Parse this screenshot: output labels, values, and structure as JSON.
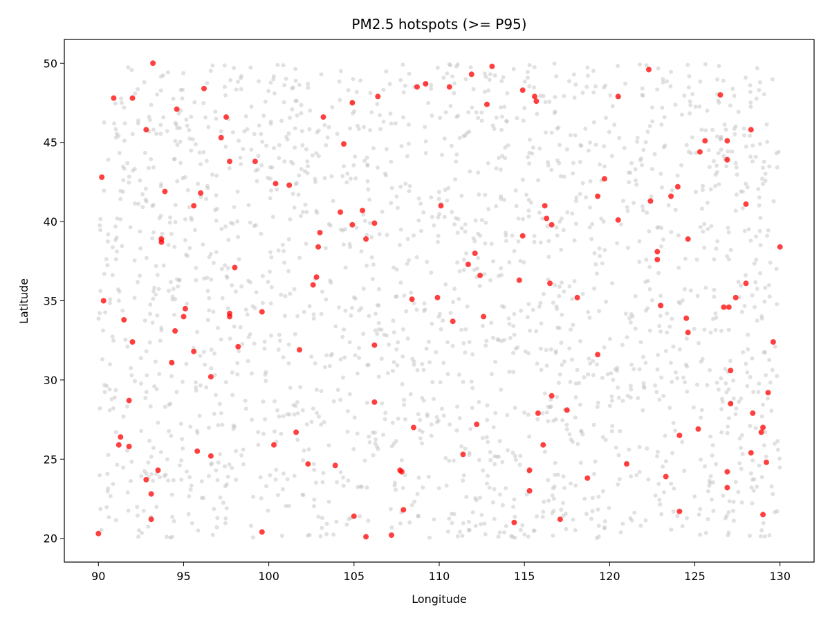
{
  "chart_data": {
    "type": "scatter",
    "title": "PM2.5 hotspots (>= P95)",
    "xlabel": "Longitude",
    "ylabel": "Latitude",
    "xlim": [
      88.0,
      132.0
    ],
    "ylim": [
      18.5,
      51.5
    ],
    "x_ticks": [
      90,
      95,
      100,
      105,
      110,
      115,
      120,
      125,
      130
    ],
    "y_ticks": [
      20,
      25,
      30,
      35,
      40,
      45,
      50
    ],
    "grid": false,
    "colors": {
      "background": "#bdbdbd",
      "hotspot": "#ff0000"
    },
    "background_points": {
      "name": "",
      "note_count_approx": 2000,
      "extent": {
        "x": [
          90.0,
          130.0
        ],
        "y": [
          20.0,
          50.0
        ]
      }
    },
    "hotspots": [
      [
        90.0,
        20.3
      ],
      [
        90.2,
        42.8
      ],
      [
        90.3,
        35.0
      ],
      [
        90.9,
        47.8
      ],
      [
        91.2,
        25.9
      ],
      [
        91.3,
        26.4
      ],
      [
        91.5,
        33.8
      ],
      [
        91.8,
        25.8
      ],
      [
        91.8,
        28.7
      ],
      [
        92.0,
        32.4
      ],
      [
        92.0,
        47.8
      ],
      [
        92.8,
        23.7
      ],
      [
        92.8,
        45.8
      ],
      [
        93.1,
        22.8
      ],
      [
        93.1,
        21.2
      ],
      [
        93.2,
        50.0
      ],
      [
        93.5,
        24.3
      ],
      [
        93.7,
        38.9
      ],
      [
        93.7,
        38.7
      ],
      [
        93.9,
        41.9
      ],
      [
        94.3,
        31.1
      ],
      [
        94.5,
        33.1
      ],
      [
        94.6,
        47.1
      ],
      [
        95.0,
        34.0
      ],
      [
        95.1,
        34.5
      ],
      [
        95.6,
        41.0
      ],
      [
        95.6,
        31.8
      ],
      [
        95.8,
        25.5
      ],
      [
        96.0,
        41.8
      ],
      [
        96.2,
        48.4
      ],
      [
        96.6,
        30.2
      ],
      [
        96.6,
        25.2
      ],
      [
        97.2,
        45.3
      ],
      [
        97.5,
        46.6
      ],
      [
        97.7,
        43.8
      ],
      [
        97.7,
        34.2
      ],
      [
        97.7,
        34.0
      ],
      [
        98.0,
        37.1
      ],
      [
        98.2,
        32.1
      ],
      [
        99.2,
        43.8
      ],
      [
        99.6,
        34.3
      ],
      [
        99.6,
        20.4
      ],
      [
        100.3,
        25.9
      ],
      [
        100.4,
        42.4
      ],
      [
        101.2,
        42.3
      ],
      [
        101.6,
        26.7
      ],
      [
        101.8,
        31.9
      ],
      [
        102.3,
        24.7
      ],
      [
        102.6,
        36.0
      ],
      [
        102.8,
        36.5
      ],
      [
        102.9,
        38.4
      ],
      [
        103.0,
        39.3
      ],
      [
        103.2,
        46.6
      ],
      [
        103.9,
        24.6
      ],
      [
        104.2,
        40.6
      ],
      [
        104.4,
        44.9
      ],
      [
        104.9,
        47.5
      ],
      [
        104.9,
        39.8
      ],
      [
        105.0,
        21.4
      ],
      [
        105.5,
        40.7
      ],
      [
        105.7,
        38.9
      ],
      [
        105.7,
        20.1
      ],
      [
        106.2,
        39.9
      ],
      [
        106.2,
        32.2
      ],
      [
        106.2,
        28.6
      ],
      [
        106.4,
        47.9
      ],
      [
        107.2,
        20.2
      ],
      [
        107.7,
        24.3
      ],
      [
        107.8,
        24.2
      ],
      [
        107.9,
        21.8
      ],
      [
        108.4,
        35.1
      ],
      [
        108.5,
        27.0
      ],
      [
        108.7,
        48.5
      ],
      [
        109.2,
        48.7
      ],
      [
        109.9,
        35.2
      ],
      [
        110.1,
        41.0
      ],
      [
        110.6,
        48.5
      ],
      [
        110.8,
        33.7
      ],
      [
        111.4,
        25.3
      ],
      [
        111.7,
        37.3
      ],
      [
        111.9,
        49.3
      ],
      [
        112.1,
        38.0
      ],
      [
        112.2,
        27.2
      ],
      [
        112.4,
        36.6
      ],
      [
        112.6,
        34.0
      ],
      [
        112.8,
        47.4
      ],
      [
        113.1,
        49.8
      ],
      [
        114.4,
        21.0
      ],
      [
        114.7,
        36.3
      ],
      [
        114.9,
        39.1
      ],
      [
        114.9,
        48.3
      ],
      [
        115.3,
        24.3
      ],
      [
        115.3,
        23.0
      ],
      [
        115.6,
        47.9
      ],
      [
        115.7,
        47.6
      ],
      [
        115.8,
        27.9
      ],
      [
        116.1,
        25.9
      ],
      [
        116.2,
        41.0
      ],
      [
        116.3,
        40.2
      ],
      [
        116.5,
        36.1
      ],
      [
        116.6,
        39.8
      ],
      [
        116.6,
        29.0
      ],
      [
        117.1,
        21.2
      ],
      [
        117.5,
        28.1
      ],
      [
        118.1,
        35.2
      ],
      [
        118.7,
        23.8
      ],
      [
        119.3,
        41.6
      ],
      [
        119.3,
        31.6
      ],
      [
        119.7,
        42.7
      ],
      [
        120.5,
        40.1
      ],
      [
        120.5,
        47.9
      ],
      [
        121.0,
        24.7
      ],
      [
        122.3,
        49.6
      ],
      [
        122.4,
        41.3
      ],
      [
        122.8,
        38.1
      ],
      [
        122.8,
        37.6
      ],
      [
        123.0,
        34.7
      ],
      [
        123.3,
        23.9
      ],
      [
        123.6,
        41.6
      ],
      [
        124.0,
        42.2
      ],
      [
        124.1,
        26.5
      ],
      [
        124.1,
        21.7
      ],
      [
        124.5,
        33.9
      ],
      [
        124.6,
        33.0
      ],
      [
        124.6,
        38.9
      ],
      [
        125.2,
        26.9
      ],
      [
        125.3,
        44.4
      ],
      [
        125.6,
        45.1
      ],
      [
        126.5,
        48.0
      ],
      [
        126.7,
        34.6
      ],
      [
        126.9,
        45.1
      ],
      [
        126.9,
        43.9
      ],
      [
        126.9,
        24.2
      ],
      [
        126.9,
        23.2
      ],
      [
        127.0,
        34.6
      ],
      [
        127.1,
        30.6
      ],
      [
        127.1,
        28.5
      ],
      [
        127.4,
        35.2
      ],
      [
        128.0,
        41.1
      ],
      [
        128.0,
        36.1
      ],
      [
        128.3,
        45.8
      ],
      [
        128.3,
        25.4
      ],
      [
        128.4,
        27.9
      ],
      [
        128.9,
        26.7
      ],
      [
        129.0,
        27.0
      ],
      [
        129.0,
        21.5
      ],
      [
        129.2,
        24.8
      ],
      [
        129.3,
        29.2
      ],
      [
        129.6,
        32.4
      ],
      [
        130.0,
        38.4
      ]
    ]
  }
}
